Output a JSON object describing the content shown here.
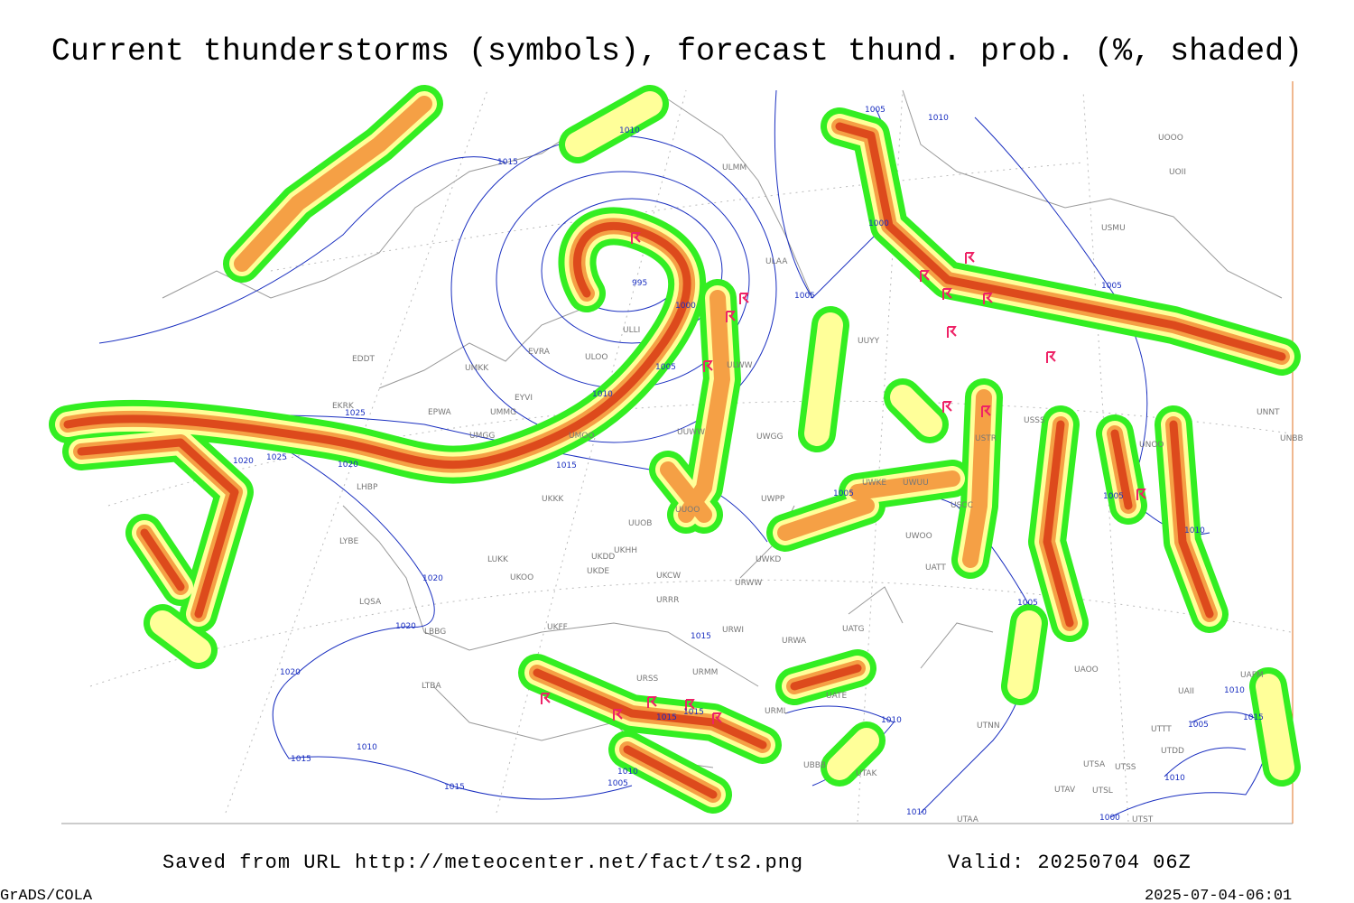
{
  "header": {
    "title": "Current thunderstorms (symbols), forecast thund. prob. (%, shaded)"
  },
  "footer": {
    "source": "Saved from URL http://meteocenter.net/fact/ts2.png",
    "valid": "Valid: 20250704 06Z",
    "software": "GrADS/COLA",
    "timestamp": "2025-07-04-06:01"
  },
  "stations": [
    "ULMM",
    "ULAA",
    "ULLI",
    "EVRA",
    "ULOO",
    "UMKK",
    "EYVI",
    "EDDT",
    "EKRK",
    "EPWA",
    "UMMG",
    "UMGG",
    "UMOO",
    "ULWW",
    "UUWW",
    "UWGG",
    "LHBP",
    "UKKK",
    "UUOO",
    "UUOB",
    "UWPP",
    "LYBE",
    "LUKK",
    "UKHH",
    "UKDD",
    "UKOO",
    "UKDE",
    "UKCW",
    "URWW",
    "URRR",
    "UWKD",
    "LQSA",
    "LBBG",
    "UKFF",
    "URWI",
    "URWA",
    "UATG",
    "URSS",
    "URMM",
    "UATE",
    "URML",
    "LTBA",
    "UBBB",
    "UTAK",
    "UTNN",
    "UAOO",
    "UTSA",
    "UTSS",
    "UTAV",
    "UTSL",
    "UTAA",
    "UTST",
    "UTDD",
    "UTTT",
    "UAFM",
    "UAII",
    "UATT",
    "UWOO",
    "UWUU",
    "UWKE",
    "USCC",
    "UNNT",
    "UNBB",
    "UNOO",
    "USSS",
    "USTR",
    "UUYY",
    "USMU",
    "UOOO",
    "UOII"
  ],
  "isobar_labels": [
    "1005",
    "1010",
    "1010",
    "1015",
    "1000",
    "1005",
    "995",
    "1000",
    "1005",
    "1005",
    "1010",
    "1025",
    "1020",
    "1025",
    "1020",
    "1015",
    "1005",
    "1005",
    "1010",
    "1020",
    "1020",
    "1020",
    "1015",
    "1015",
    "1015",
    "1010",
    "1005",
    "1010",
    "1015",
    "1005",
    "1010",
    "1010",
    "1015",
    "1010",
    "1005",
    "1015",
    "1010",
    "1000"
  ]
}
